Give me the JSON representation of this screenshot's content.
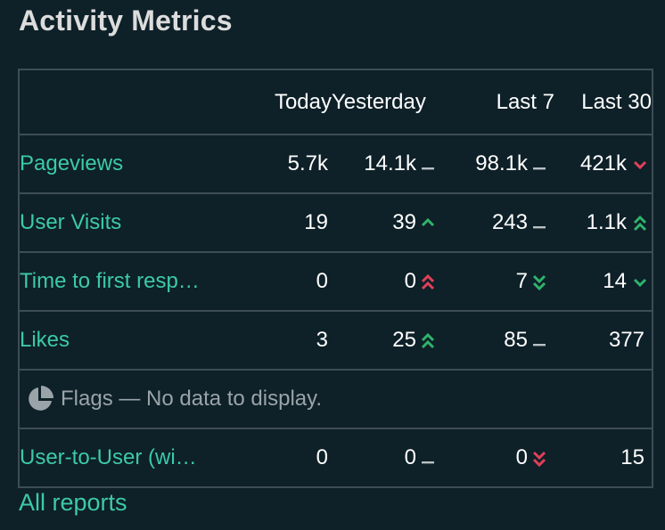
{
  "title": "Activity Metrics",
  "columns": {
    "today": "Today",
    "yesterday": "Yesterday",
    "last7": "Last 7",
    "last30": "Last 30"
  },
  "colors": {
    "accent": "#3ccaa8",
    "up": "#2fb36b",
    "down": "#e0405a",
    "neutral": "#b9c0c3"
  },
  "rows": [
    {
      "label": "Pageviews",
      "today": "5.7k",
      "yesterday": "14.1k",
      "yesterday_trend": "neutral-dash-icon",
      "last7": "98.1k",
      "last7_trend": "neutral-dash-icon",
      "last30": "421k",
      "last30_trend": "chevron-down-red-icon"
    },
    {
      "label": "User Visits",
      "today": "19",
      "yesterday": "39",
      "yesterday_trend": "chevron-up-green-icon",
      "last7": "243",
      "last7_trend": "neutral-dash-icon",
      "last30": "1.1k",
      "last30_trend": "double-chevron-up-green-icon"
    },
    {
      "label": "Time to first resp…",
      "today": "0",
      "yesterday": "0",
      "yesterday_trend": "double-chevron-up-red-icon",
      "last7": "7",
      "last7_trend": "double-chevron-down-green-icon",
      "last30": "14",
      "last30_trend": "chevron-down-green-icon"
    },
    {
      "label": "Likes",
      "today": "3",
      "yesterday": "25",
      "yesterday_trend": "double-chevron-up-green-icon",
      "last7": "85",
      "last7_trend": "neutral-dash-icon",
      "last30": "377",
      "last30_trend": null
    }
  ],
  "flags": {
    "icon": "pie-chart-icon",
    "text": "Flags — No data to display."
  },
  "user_to_user": {
    "label": "User-to-User (wi…",
    "today": "0",
    "yesterday": "0",
    "yesterday_trend": "neutral-dash-icon",
    "last7": "0",
    "last7_trend": "double-chevron-down-red-icon",
    "last30": "15",
    "last30_trend": null
  },
  "footer_link": "All reports"
}
